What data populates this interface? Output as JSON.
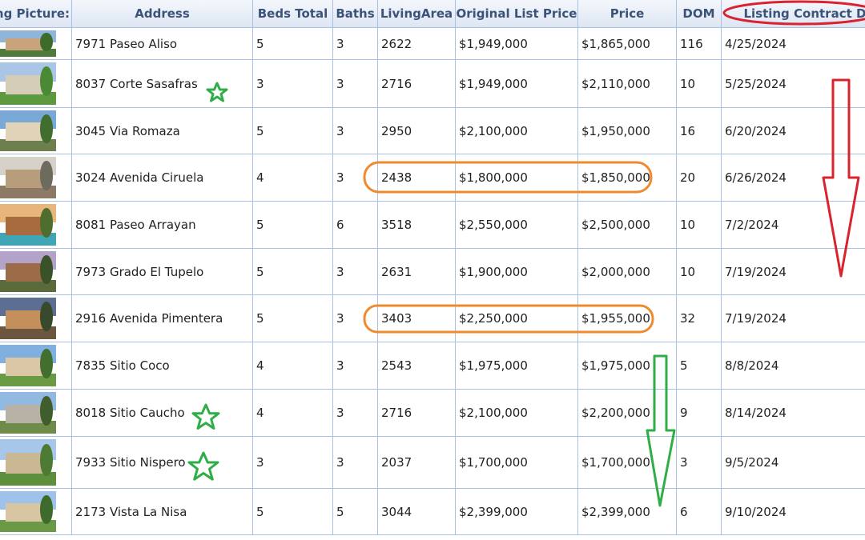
{
  "table": {
    "columns": [
      "ing Picture:",
      "Address",
      "Beds Total",
      "Baths",
      "LivingArea",
      "Original List Price",
      "Price",
      "DOM",
      "Listing Contract Da"
    ],
    "rows": [
      {
        "address": "7971 Paseo Aliso",
        "beds": "5",
        "baths": "3",
        "living": "2622",
        "orig": "$1,949,000",
        "price": "$1,865,000",
        "dom": "116",
        "date": "4/25/2024"
      },
      {
        "address": "8037 Corte Sasafras",
        "beds": "3",
        "baths": "3",
        "living": "2716",
        "orig": "$1,949,000",
        "price": "$2,110,000",
        "dom": "10",
        "date": "5/25/2024"
      },
      {
        "address": "3045 Via Romaza",
        "beds": "5",
        "baths": "3",
        "living": "2950",
        "orig": "$2,100,000",
        "price": "$1,950,000",
        "dom": "16",
        "date": "6/20/2024"
      },
      {
        "address": "3024 Avenida Ciruela",
        "beds": "4",
        "baths": "3",
        "living": "2438",
        "orig": "$1,800,000",
        "price": "$1,850,000",
        "dom": "20",
        "date": "6/26/2024"
      },
      {
        "address": "8081 Paseo Arrayan",
        "beds": "5",
        "baths": "6",
        "living": "3518",
        "orig": "$2,550,000",
        "price": "$2,500,000",
        "dom": "10",
        "date": "7/2/2024"
      },
      {
        "address": "7973 Grado El Tupelo",
        "beds": "5",
        "baths": "3",
        "living": "2631",
        "orig": "$1,900,000",
        "price": "$2,000,000",
        "dom": "10",
        "date": "7/19/2024"
      },
      {
        "address": "2916 Avenida Pimentera",
        "beds": "5",
        "baths": "3",
        "living": "3403",
        "orig": "$2,250,000",
        "price": "$1,955,000",
        "dom": "32",
        "date": "7/19/2024"
      },
      {
        "address": "7835 Sitio Coco",
        "beds": "4",
        "baths": "3",
        "living": "2543",
        "orig": "$1,975,000",
        "price": "$1,975,000",
        "dom": "5",
        "date": "8/8/2024"
      },
      {
        "address": "8018 Sitio Caucho",
        "beds": "4",
        "baths": "3",
        "living": "2716",
        "orig": "$2,100,000",
        "price": "$2,200,000",
        "dom": "9",
        "date": "8/14/2024"
      },
      {
        "address": "7933 Sitio Nispero",
        "beds": "3",
        "baths": "3",
        "living": "2037",
        "orig": "$1,700,000",
        "price": "$1,700,000",
        "dom": "3",
        "date": "9/5/2024"
      },
      {
        "address": "2173 Vista La Nisa",
        "beds": "5",
        "baths": "5",
        "living": "3044",
        "orig": "$2,399,000",
        "price": "$2,399,000",
        "dom": "6",
        "date": "9/10/2024"
      }
    ]
  },
  "annotations": {
    "red": "#d9232e",
    "orange": "#ef8a2e",
    "green": "#2fae47",
    "stars_on_rows": [
      "8037 Corte Sasafras",
      "8018 Sitio Caucho",
      "7933 Sitio Nispero"
    ],
    "circled_rows": [
      "3024 Avenida Ciruela",
      "2916 Avenida Pimentera"
    ],
    "circled_header": "Listing Contract Da"
  },
  "colors": {
    "grid_line": "#a9c1e3",
    "header_text": "#3b5379"
  }
}
